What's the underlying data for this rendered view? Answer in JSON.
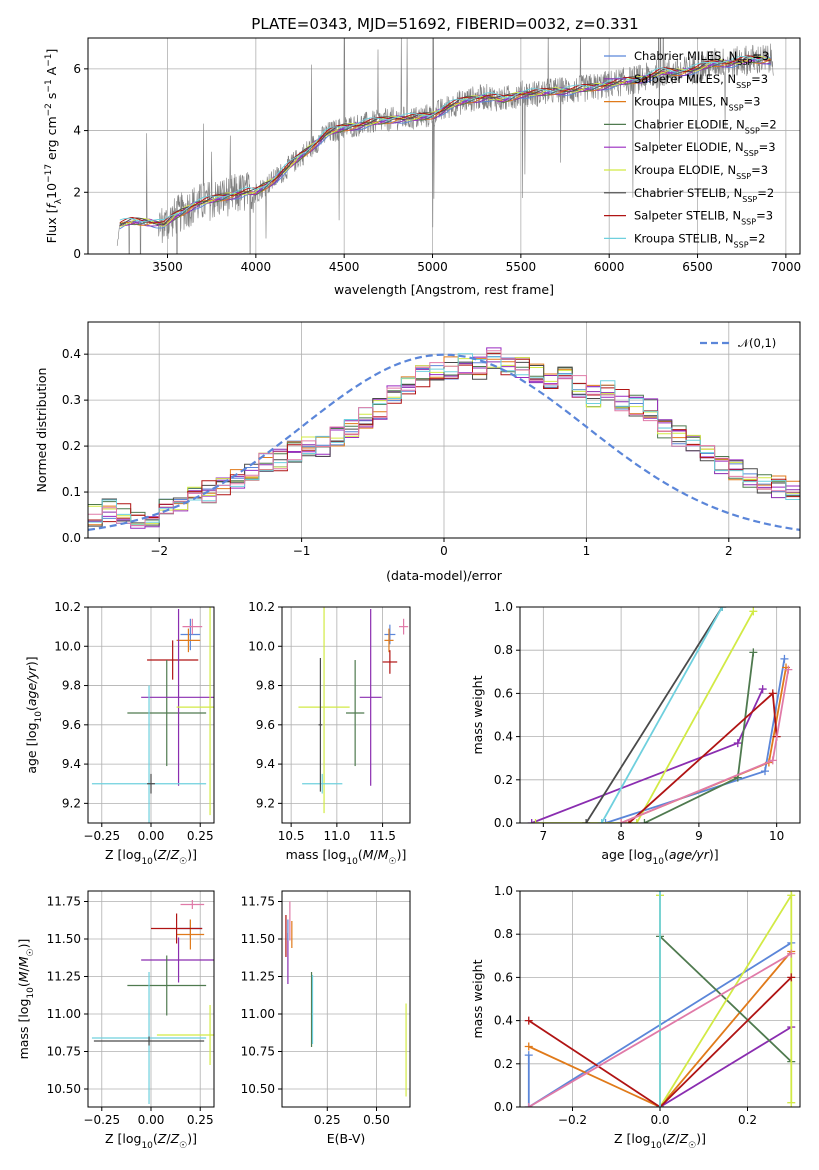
{
  "figure": {
    "title": "PLATE=0343, MJD=51692, FIBERID=0032, z=0.331"
  },
  "colors": {
    "Chabrier MILES": "#5b86d9",
    "Salpeter MILES": "#8a2db0",
    "Kroupa MILES": "#e07a1a",
    "Chabrier ELODIE": "#4f7a4f",
    "Salpeter ELODIE": "#9a2ac0",
    "Kroupa ELODIE": "#d2ea45",
    "Chabrier STELIB": "#4a4a4a",
    "Salpeter STELIB": "#b01414",
    "Kroupa STELIB": "#6fd0de",
    "extra pink": "#e07aa8",
    "spectrum": "#808080",
    "normal": "#5b86d9"
  },
  "chart_data": [
    {
      "id": "spectrum",
      "type": "line",
      "title": "PLATE=0343, MJD=51692, FIBERID=0032, z=0.331",
      "xlabel": "wavelength [Angstrom, rest frame]",
      "ylabel": "Flux [f_λ 10^-17 erg cm^-2 s^-1 A^-1]",
      "xlim": [
        3050,
        7080
      ],
      "ylim": [
        0,
        7
      ],
      "xticks": [
        3500,
        4000,
        4500,
        5000,
        5500,
        6000,
        6500,
        7000
      ],
      "yticks": [
        0,
        2,
        4,
        6
      ],
      "legend_position": "upper right",
      "legend": [
        "Chabrier MILES, N_SSP=3",
        "Salpeter MILES, N_SSP=3",
        "Kroupa MILES, N_SSP=3",
        "Chabrier ELODIE, N_SSP=2",
        "Salpeter ELODIE, N_SSP=3",
        "Kroupa ELODIE, N_SSP=3",
        "Chabrier STELIB, N_SSP=2",
        "Salpeter STELIB, N_SSP=3",
        "Kroupa STELIB, N_SSP=2"
      ],
      "continuum": {
        "x": [
          3210,
          3230,
          3300,
          3400,
          3480,
          3550,
          3650,
          3750,
          3850,
          3950,
          4000,
          4100,
          4200,
          4300,
          4400,
          4500,
          4600,
          4700,
          4800,
          4900,
          5000,
          5100,
          5200,
          5300,
          5400,
          5500,
          5600,
          5700,
          5800,
          5900,
          6000,
          6100,
          6200,
          6300,
          6400,
          6500,
          6600,
          6700,
          6800,
          6900
        ],
        "y": [
          0.0,
          0.95,
          1.05,
          1.05,
          0.95,
          1.25,
          1.6,
          1.75,
          1.9,
          2.0,
          2.0,
          2.4,
          2.9,
          3.4,
          3.9,
          4.1,
          4.2,
          4.3,
          4.4,
          4.4,
          4.5,
          4.8,
          5.0,
          5.1,
          5.0,
          5.2,
          5.2,
          5.3,
          5.3,
          5.4,
          5.5,
          5.6,
          5.7,
          5.9,
          5.9,
          6.0,
          6.2,
          6.2,
          6.3,
          6.3
        ]
      }
    },
    {
      "id": "residuals",
      "type": "histogram",
      "xlabel": "(data-model)/error",
      "ylabel": "Normed distribution",
      "xlim": [
        -2.5,
        2.5
      ],
      "ylim": [
        0,
        0.47
      ],
      "xticks": [
        -2,
        -1,
        0,
        1,
        2
      ],
      "yticks": [
        0.0,
        0.1,
        0.2,
        0.3,
        0.4
      ],
      "legend": [
        "𝒩(0,1)"
      ],
      "legend_position": "upper right",
      "bin_edges_start": -2.5,
      "bin_width": 0.1,
      "mean_hist": [
        0.05,
        0.06,
        0.05,
        0.04,
        0.04,
        0.07,
        0.08,
        0.09,
        0.1,
        0.11,
        0.13,
        0.14,
        0.16,
        0.17,
        0.19,
        0.2,
        0.2,
        0.22,
        0.24,
        0.26,
        0.28,
        0.31,
        0.33,
        0.35,
        0.36,
        0.37,
        0.38,
        0.37,
        0.39,
        0.38,
        0.37,
        0.36,
        0.35,
        0.35,
        0.33,
        0.31,
        0.32,
        0.3,
        0.29,
        0.28,
        0.24,
        0.22,
        0.2,
        0.18,
        0.16,
        0.15,
        0.13,
        0.12,
        0.11,
        0.1
      ]
    },
    {
      "id": "age-vs-Z",
      "type": "errorbar",
      "xlabel": "Z [log10(Z/Z☉)]",
      "ylabel": "age [log10(age/yr)]",
      "xlim": [
        -0.32,
        0.32
      ],
      "ylim": [
        9.1,
        10.2
      ],
      "xticks": [
        -0.25,
        0.0,
        0.25
      ],
      "yticks": [
        9.2,
        9.4,
        9.6,
        9.8,
        10.0,
        10.2
      ],
      "points": [
        {
          "series": "Chabrier MILES",
          "x": 0.2,
          "y": 10.06,
          "xerr": 0.05,
          "yerr": 0.08
        },
        {
          "series": "Kroupa MILES",
          "x": 0.19,
          "y": 10.03,
          "xerr": 0.06,
          "yerr": 0.06
        },
        {
          "series": "extra pink",
          "x": 0.21,
          "y": 10.1,
          "xerr": 0.05,
          "yerr": 0.04
        },
        {
          "series": "Salpeter STELIB",
          "x": 0.11,
          "y": 9.93,
          "xerr": 0.13,
          "yerr": 0.1
        },
        {
          "series": "Chabrier ELODIE",
          "x": 0.08,
          "y": 9.66,
          "xerr": 0.2,
          "yerr": 0.27
        },
        {
          "series": "Salpeter MILES",
          "x": 0.14,
          "y": 9.74,
          "xerr": 0.19,
          "yerr": 0.45
        },
        {
          "series": "Kroupa ELODIE",
          "x": 0.3,
          "y": 9.69,
          "xerr": 0.17,
          "yerr": 0.55
        },
        {
          "series": "Kroupa STELIB",
          "x": -0.01,
          "y": 9.3,
          "xerr": 0.29,
          "yerr": 0.5
        },
        {
          "series": "Chabrier STELIB",
          "x": 0.0,
          "y": 9.3,
          "xerr": 0.02,
          "yerr": 0.05
        }
      ]
    },
    {
      "id": "age-vs-mass",
      "type": "errorbar",
      "xlabel": "mass [log10(M/M☉)]",
      "ylabel": "",
      "xlim": [
        10.4,
        11.8
      ],
      "ylim": [
        9.1,
        10.2
      ],
      "xticks": [
        10.5,
        11.0,
        11.5
      ],
      "yticks": [
        9.2,
        9.4,
        9.6,
        9.8,
        10.0,
        10.2
      ],
      "points": [
        {
          "series": "Chabrier MILES",
          "x": 11.58,
          "y": 10.06,
          "xerr": 0.06,
          "yerr": 0.05
        },
        {
          "series": "Kroupa MILES",
          "x": 11.57,
          "y": 10.03,
          "xerr": 0.05,
          "yerr": 0.06
        },
        {
          "series": "extra pink",
          "x": 11.73,
          "y": 10.1,
          "xerr": 0.05,
          "yerr": 0.04
        },
        {
          "series": "Salpeter STELIB",
          "x": 11.58,
          "y": 9.92,
          "xerr": 0.08,
          "yerr": 0.06
        },
        {
          "series": "Chabrier ELODIE",
          "x": 11.2,
          "y": 9.66,
          "xerr": 0.1,
          "yerr": 0.27
        },
        {
          "series": "Salpeter MILES",
          "x": 11.37,
          "y": 9.74,
          "xerr": 0.12,
          "yerr": 0.45
        },
        {
          "series": "Kroupa ELODIE",
          "x": 10.86,
          "y": 9.69,
          "xerr": 0.28,
          "yerr": 0.54
        },
        {
          "series": "Kroupa STELIB",
          "x": 10.84,
          "y": 9.3,
          "xerr": 0.22,
          "yerr": 0.05
        },
        {
          "series": "Chabrier STELIB",
          "x": 10.82,
          "y": 9.6,
          "xerr": 0.02,
          "yerr": 0.34
        }
      ]
    },
    {
      "id": "massweight-vs-age",
      "type": "line",
      "xlabel": "age [log10(age/yr)]",
      "ylabel": "mass weight",
      "xlim": [
        6.7,
        10.3
      ],
      "ylim": [
        0,
        1.0
      ],
      "xticks": [
        7,
        8,
        9,
        10
      ],
      "yticks": [
        0.0,
        0.2,
        0.4,
        0.6,
        0.8,
        1.0
      ],
      "series": [
        {
          "name": "Chabrier MILES",
          "x": [
            7.8,
            9.85,
            10.1
          ],
          "y": [
            0.0,
            0.24,
            0.76
          ]
        },
        {
          "name": "Salpeter MILES",
          "x": [
            6.85,
            9.5,
            9.82
          ],
          "y": [
            0.0,
            0.37,
            0.62
          ]
        },
        {
          "name": "Kroupa MILES",
          "x": [
            8.0,
            9.9,
            10.12
          ],
          "y": [
            0.0,
            0.28,
            0.72
          ]
        },
        {
          "name": "Chabrier ELODIE",
          "x": [
            8.3,
            9.5,
            9.7
          ],
          "y": [
            0.0,
            0.21,
            0.79
          ]
        },
        {
          "name": "Kroupa ELODIE",
          "x": [
            6.9,
            8.2,
            9.7
          ],
          "y": [
            0.0,
            0.0,
            0.98
          ]
        },
        {
          "name": "Chabrier STELIB",
          "x": [
            7.55,
            9.3
          ],
          "y": [
            0.0,
            1.0
          ]
        },
        {
          "name": "Salpeter STELIB",
          "x": [
            8.1,
            9.95,
            10.0
          ],
          "y": [
            0.0,
            0.6,
            0.4
          ]
        },
        {
          "name": "Kroupa STELIB",
          "x": [
            7.75,
            9.3
          ],
          "y": [
            0.0,
            1.0
          ]
        },
        {
          "name": "extra pink",
          "x": [
            8.0,
            9.95,
            10.15
          ],
          "y": [
            0.0,
            0.29,
            0.71
          ]
        }
      ]
    },
    {
      "id": "mass-vs-Z",
      "type": "errorbar",
      "xlabel": "Z [log10(Z/Z☉)]",
      "ylabel": "mass [log10(M/M☉)]",
      "xlim": [
        -0.32,
        0.32
      ],
      "ylim": [
        10.38,
        11.82
      ],
      "xticks": [
        -0.25,
        0.0,
        0.25
      ],
      "yticks": [
        10.5,
        10.75,
        11.0,
        11.25,
        11.5,
        11.75
      ],
      "points": [
        {
          "series": "extra pink",
          "x": 0.21,
          "y": 11.73,
          "xerr": 0.06,
          "yerr": 0.03
        },
        {
          "series": "Chabrier MILES",
          "x": 0.2,
          "y": 11.57,
          "xerr": 0.06,
          "yerr": 0.06
        },
        {
          "series": "Kroupa MILES",
          "x": 0.2,
          "y": 11.53,
          "xerr": 0.07,
          "yerr": 0.1
        },
        {
          "series": "Salpeter STELIB",
          "x": 0.13,
          "y": 11.57,
          "xerr": 0.13,
          "yerr": 0.1
        },
        {
          "series": "Salpeter MILES",
          "x": 0.14,
          "y": 11.36,
          "xerr": 0.19,
          "yerr": 0.15
        },
        {
          "series": "Chabrier ELODIE",
          "x": 0.08,
          "y": 11.19,
          "xerr": 0.2,
          "yerr": 0.2
        },
        {
          "series": "Kroupa ELODIE",
          "x": 0.3,
          "y": 10.86,
          "xerr": 0.27,
          "yerr": 0.2
        },
        {
          "series": "Kroupa STELIB",
          "x": -0.01,
          "y": 10.84,
          "xerr": 0.29,
          "yerr": 0.44
        },
        {
          "series": "Chabrier STELIB",
          "x": -0.01,
          "y": 10.82,
          "xerr": 0.28,
          "yerr": 0.03
        }
      ]
    },
    {
      "id": "mass-vs-EBV",
      "type": "errorbar",
      "xlabel": "E(B-V)",
      "ylabel": "",
      "xlim": [
        0.02,
        0.67
      ],
      "ylim": [
        10.38,
        11.82
      ],
      "xticks": [
        0.25,
        0.5
      ],
      "yticks": [
        10.5,
        10.75,
        11.0,
        11.25,
        11.5,
        11.75
      ],
      "points": [
        {
          "series": "Salpeter STELIB",
          "x": 0.04,
          "y": 11.52,
          "xerr": 0.0,
          "yerr": 0.14
        },
        {
          "series": "Salpeter MILES",
          "x": 0.05,
          "y": 11.37,
          "xerr": 0.0,
          "yerr": 0.17
        },
        {
          "series": "Chabrier MILES",
          "x": 0.05,
          "y": 11.56,
          "xerr": 0.0,
          "yerr": 0.07
        },
        {
          "series": "extra pink",
          "x": 0.06,
          "y": 11.62,
          "xerr": 0.0,
          "yerr": 0.13
        },
        {
          "series": "Kroupa MILES",
          "x": 0.07,
          "y": 11.53,
          "xerr": 0.0,
          "yerr": 0.09
        },
        {
          "series": "Chabrier ELODIE",
          "x": 0.17,
          "y": 11.03,
          "xerr": 0.0,
          "yerr": 0.25
        },
        {
          "series": "Kroupa STELIB",
          "x": 0.175,
          "y": 11.03,
          "xerr": 0.0,
          "yerr": 0.23
        },
        {
          "series": "Kroupa ELODIE",
          "x": 0.65,
          "y": 10.76,
          "xerr": 0.0,
          "yerr": 0.31
        }
      ]
    },
    {
      "id": "massweight-vs-Z",
      "type": "line",
      "xlabel": "Z [log10(Z/Z☉)]",
      "ylabel": "mass weight",
      "xlim": [
        -0.32,
        0.32
      ],
      "ylim": [
        0,
        1.0
      ],
      "xticks": [
        -0.2,
        0.0,
        0.2
      ],
      "yticks": [
        0.0,
        0.2,
        0.4,
        0.6,
        0.8,
        1.0
      ],
      "series": [
        {
          "name": "Chabrier MILES",
          "x": [
            -0.3,
            -0.3,
            0.3
          ],
          "y": [
            0.24,
            0.0,
            0.76
          ]
        },
        {
          "name": "Salpeter MILES",
          "x": [
            0.0,
            0.3
          ],
          "y": [
            0.0,
            0.37
          ]
        },
        {
          "name": "Kroupa MILES",
          "x": [
            -0.3,
            0.0,
            0.3
          ],
          "y": [
            0.28,
            0.0,
            0.72
          ]
        },
        {
          "name": "Chabrier ELODIE",
          "x": [
            0.0,
            0.3
          ],
          "y": [
            0.79,
            0.21
          ]
        },
        {
          "name": "Kroupa ELODIE",
          "x": [
            0.0,
            0.0,
            0.3,
            0.3
          ],
          "y": [
            0.98,
            0.0,
            0.98,
            0.02
          ]
        },
        {
          "name": "Salpeter STELIB",
          "x": [
            -0.3,
            0.0,
            0.3
          ],
          "y": [
            0.4,
            0.0,
            0.6
          ]
        },
        {
          "name": "Kroupa STELIB",
          "x": [
            0.0,
            0.0
          ],
          "y": [
            0.0,
            1.0
          ]
        },
        {
          "name": "extra pink",
          "x": [
            -0.3,
            0.3
          ],
          "y": [
            0.0,
            0.71
          ]
        }
      ]
    }
  ]
}
